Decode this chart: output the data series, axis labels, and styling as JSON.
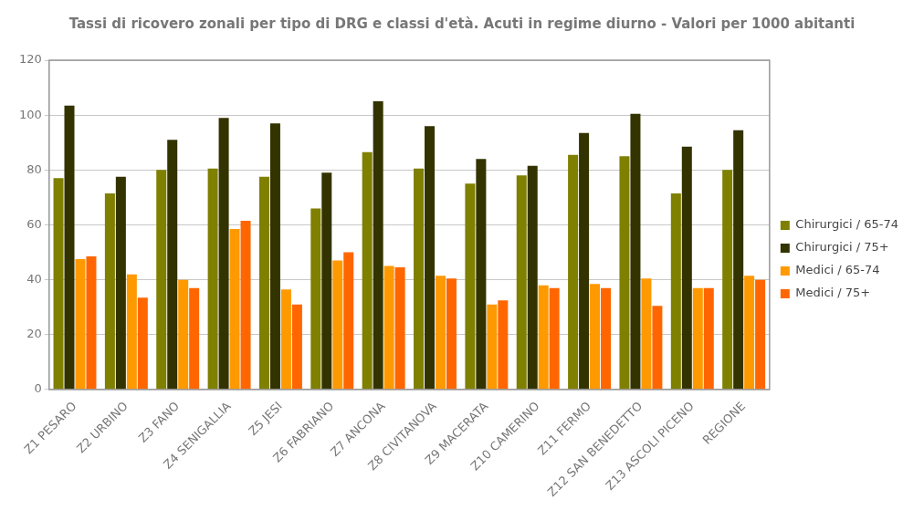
{
  "chart_data": {
    "type": "bar",
    "title": "Tassi di ricovero zonali per tipo di DRG e classi d'età. Acuti in regime diurno - Valori per 1000 abitanti",
    "categories": [
      "Z1 PESARO",
      "Z2 URBINO",
      "Z3 FANO",
      "Z4 SENIGALLIA",
      "Z5 JESI",
      "Z6 FABRIANO",
      "Z7 ANCONA",
      "Z8 CIVITANOVA",
      "Z9 MACERATA",
      "Z10 CAMERINO",
      "Z11 FERMO",
      "Z12 SAN BENEDETTO",
      "Z13 ASCOLI PICENO",
      "REGIONE"
    ],
    "series": [
      {
        "name": "Chirurgici / 65-74",
        "color": "#7f7f00",
        "values": [
          77,
          71.5,
          80,
          80.5,
          77.5,
          66,
          86.5,
          80.5,
          75,
          78,
          85.5,
          85,
          71.5,
          80
        ]
      },
      {
        "name": "Chirurgici / 75+",
        "color": "#333300",
        "values": [
          103.5,
          77.5,
          91,
          99,
          97,
          79,
          105,
          96,
          84,
          81.5,
          93.5,
          100.5,
          88.5,
          94.5
        ]
      },
      {
        "name": "Medici / 65-74",
        "color": "#ff9900",
        "values": [
          47.5,
          42,
          40,
          58.5,
          36.5,
          47,
          45,
          41.5,
          31,
          38,
          38.5,
          40.5,
          37,
          41.5
        ]
      },
      {
        "name": "Medici / 75+",
        "color": "#ff6600",
        "values": [
          48.5,
          33.5,
          37,
          61.5,
          31,
          50,
          44.5,
          40.5,
          32.5,
          37,
          37,
          30.5,
          37,
          40
        ]
      }
    ],
    "ylim": [
      0,
      120
    ],
    "yticks": [
      0,
      20,
      40,
      60,
      80,
      100,
      120
    ],
    "grid": "y",
    "legend": "right"
  }
}
